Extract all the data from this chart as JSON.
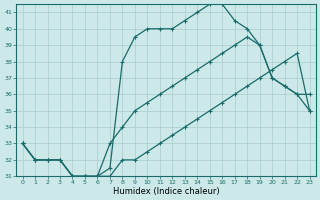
{
  "xlabel": "Humidex (Indice chaleur)",
  "bg_color": "#cce8e8",
  "grid_color": "#aacccc",
  "line_color": "#1a6b6b",
  "xlim": [
    -0.5,
    23.5
  ],
  "ylim": [
    31,
    41.5
  ],
  "yticks": [
    31,
    32,
    33,
    34,
    35,
    36,
    37,
    38,
    39,
    40,
    41
  ],
  "xticks": [
    0,
    1,
    2,
    3,
    4,
    5,
    6,
    7,
    8,
    9,
    10,
    11,
    12,
    13,
    14,
    15,
    16,
    17,
    18,
    19,
    20,
    21,
    22,
    23
  ],
  "line1_x": [
    0,
    1,
    2,
    3,
    4,
    5,
    6,
    7,
    8,
    9,
    10,
    11,
    12,
    13,
    14,
    15,
    16,
    17,
    18,
    19,
    20,
    21,
    22,
    23
  ],
  "line1_y": [
    33,
    32,
    32,
    32,
    31,
    31,
    31,
    31,
    32,
    32,
    32.5,
    33,
    33.5,
    34,
    34.5,
    35,
    35.5,
    36,
    36.5,
    37,
    37.5,
    38,
    38.5,
    35
  ],
  "line2_x": [
    0,
    1,
    2,
    3,
    4,
    5,
    6,
    7,
    8,
    9,
    10,
    11,
    12,
    13,
    14,
    15,
    16,
    17,
    18,
    19,
    20,
    21,
    22,
    23
  ],
  "line2_y": [
    33,
    32,
    32,
    32,
    31,
    31,
    31,
    33,
    34,
    35,
    35.5,
    36,
    36.5,
    37,
    37.5,
    38,
    38.5,
    39,
    39.5,
    39,
    37,
    36.5,
    36,
    36
  ],
  "line3_x": [
    0,
    1,
    2,
    3,
    4,
    5,
    6,
    7,
    8,
    9,
    10,
    11,
    12,
    13,
    14,
    15,
    16,
    17,
    18,
    19,
    20,
    21,
    22,
    23
  ],
  "line3_y": [
    33,
    32,
    32,
    32,
    31,
    31,
    31,
    31.5,
    38,
    39.5,
    40,
    40,
    40,
    40.5,
    41,
    41.5,
    41.5,
    40.5,
    40,
    39,
    37,
    36.5,
    36,
    35
  ]
}
